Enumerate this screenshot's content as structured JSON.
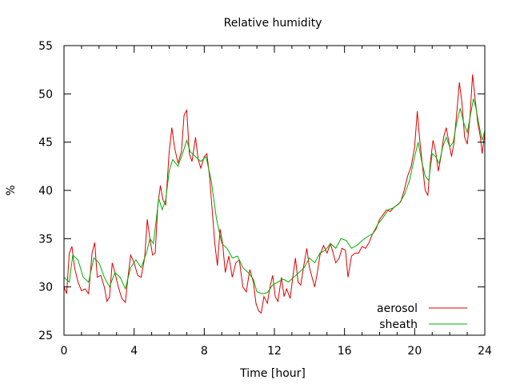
{
  "chart_data": {
    "type": "line",
    "title": "Relative humidity",
    "xlabel": "Time [hour]",
    "ylabel": "%",
    "xlim": [
      0,
      24
    ],
    "ylim": [
      25,
      55
    ],
    "xticks": [
      0,
      4,
      8,
      12,
      16,
      20,
      24
    ],
    "yticks": [
      25,
      30,
      35,
      40,
      45,
      50,
      55
    ],
    "legend_position": "bottom-right",
    "grid": false,
    "series": [
      {
        "name": "aerosol",
        "color": "#e00000",
        "points": [
          [
            0.0,
            30.0
          ],
          [
            0.15,
            29.3
          ],
          [
            0.3,
            33.5
          ],
          [
            0.45,
            34.2
          ],
          [
            0.6,
            32.0
          ],
          [
            0.8,
            30.5
          ],
          [
            1.0,
            29.6
          ],
          [
            1.2,
            29.8
          ],
          [
            1.4,
            29.3
          ],
          [
            1.6,
            33.5
          ],
          [
            1.75,
            34.6
          ],
          [
            1.9,
            31.0
          ],
          [
            2.1,
            31.2
          ],
          [
            2.3,
            30.0
          ],
          [
            2.45,
            28.5
          ],
          [
            2.6,
            29.0
          ],
          [
            2.75,
            32.5
          ],
          [
            2.9,
            31.5
          ],
          [
            3.1,
            30.0
          ],
          [
            3.3,
            28.8
          ],
          [
            3.5,
            28.4
          ],
          [
            3.65,
            31.0
          ],
          [
            3.8,
            33.3
          ],
          [
            4.0,
            32.5
          ],
          [
            4.2,
            31.2
          ],
          [
            4.4,
            31.0
          ],
          [
            4.6,
            33.0
          ],
          [
            4.75,
            37.0
          ],
          [
            4.9,
            35.0
          ],
          [
            5.05,
            33.3
          ],
          [
            5.2,
            33.5
          ],
          [
            5.35,
            38.5
          ],
          [
            5.5,
            40.5
          ],
          [
            5.65,
            39.0
          ],
          [
            5.8,
            38.5
          ],
          [
            6.0,
            44.0
          ],
          [
            6.15,
            46.5
          ],
          [
            6.3,
            44.5
          ],
          [
            6.5,
            42.8
          ],
          [
            6.7,
            44.0
          ],
          [
            6.85,
            47.8
          ],
          [
            7.0,
            48.3
          ],
          [
            7.15,
            43.8
          ],
          [
            7.3,
            43.0
          ],
          [
            7.5,
            45.5
          ],
          [
            7.65,
            43.2
          ],
          [
            7.8,
            42.3
          ],
          [
            8.0,
            43.5
          ],
          [
            8.15,
            43.8
          ],
          [
            8.3,
            41.5
          ],
          [
            8.45,
            38.0
          ],
          [
            8.6,
            34.5
          ],
          [
            8.75,
            32.2
          ],
          [
            8.9,
            36.0
          ],
          [
            9.05,
            34.5
          ],
          [
            9.2,
            31.5
          ],
          [
            9.4,
            33.2
          ],
          [
            9.6,
            31.0
          ],
          [
            9.8,
            32.5
          ],
          [
            10.0,
            32.8
          ],
          [
            10.2,
            30.0
          ],
          [
            10.4,
            29.5
          ],
          [
            10.6,
            31.8
          ],
          [
            10.8,
            30.5
          ],
          [
            10.95,
            28.3
          ],
          [
            11.1,
            27.5
          ],
          [
            11.25,
            27.3
          ],
          [
            11.4,
            29.0
          ],
          [
            11.6,
            28.3
          ],
          [
            11.75,
            30.0
          ],
          [
            11.9,
            31.2
          ],
          [
            12.05,
            29.0
          ],
          [
            12.2,
            28.5
          ],
          [
            12.4,
            31.0
          ],
          [
            12.55,
            29.0
          ],
          [
            12.7,
            29.8
          ],
          [
            12.9,
            28.8
          ],
          [
            13.05,
            31.0
          ],
          [
            13.2,
            33.0
          ],
          [
            13.35,
            30.5
          ],
          [
            13.5,
            30.2
          ],
          [
            13.7,
            32.5
          ],
          [
            13.85,
            34.0
          ],
          [
            14.0,
            32.0
          ],
          [
            14.15,
            31.0
          ],
          [
            14.3,
            30.0
          ],
          [
            14.45,
            31.5
          ],
          [
            14.6,
            33.3
          ],
          [
            14.8,
            34.3
          ],
          [
            15.0,
            33.5
          ],
          [
            15.2,
            34.5
          ],
          [
            15.35,
            33.5
          ],
          [
            15.5,
            32.5
          ],
          [
            15.7,
            33.0
          ],
          [
            15.85,
            34.0
          ],
          [
            16.05,
            33.8
          ],
          [
            16.2,
            31.0
          ],
          [
            16.4,
            33.2
          ],
          [
            16.6,
            33.5
          ],
          [
            16.8,
            33.5
          ],
          [
            17.0,
            34.2
          ],
          [
            17.2,
            34.0
          ],
          [
            17.4,
            34.6
          ],
          [
            17.6,
            35.5
          ],
          [
            17.8,
            36.0
          ],
          [
            18.0,
            37.0
          ],
          [
            18.2,
            37.5
          ],
          [
            18.4,
            38.0
          ],
          [
            18.6,
            37.8
          ],
          [
            18.8,
            38.2
          ],
          [
            19.0,
            38.5
          ],
          [
            19.2,
            38.8
          ],
          [
            19.4,
            40.0
          ],
          [
            19.6,
            41.5
          ],
          [
            19.8,
            42.5
          ],
          [
            20.0,
            44.5
          ],
          [
            20.15,
            48.2
          ],
          [
            20.3,
            45.0
          ],
          [
            20.45,
            42.5
          ],
          [
            20.6,
            40.0
          ],
          [
            20.75,
            39.5
          ],
          [
            20.9,
            43.0
          ],
          [
            21.05,
            45.2
          ],
          [
            21.2,
            44.0
          ],
          [
            21.35,
            42.0
          ],
          [
            21.5,
            43.5
          ],
          [
            21.65,
            45.5
          ],
          [
            21.8,
            46.5
          ],
          [
            21.95,
            45.0
          ],
          [
            22.1,
            43.5
          ],
          [
            22.25,
            45.0
          ],
          [
            22.4,
            48.0
          ],
          [
            22.55,
            51.2
          ],
          [
            22.7,
            49.0
          ],
          [
            22.85,
            45.5
          ],
          [
            23.0,
            44.8
          ],
          [
            23.15,
            47.5
          ],
          [
            23.3,
            52.0
          ],
          [
            23.45,
            49.5
          ],
          [
            23.6,
            47.0
          ],
          [
            23.75,
            45.5
          ],
          [
            23.85,
            43.8
          ],
          [
            24.0,
            46.0
          ]
        ]
      },
      {
        "name": "sheath",
        "color": "#00b000",
        "points": [
          [
            0.0,
            31.0
          ],
          [
            0.3,
            30.5
          ],
          [
            0.5,
            33.3
          ],
          [
            0.8,
            32.8
          ],
          [
            1.1,
            31.0
          ],
          [
            1.4,
            30.5
          ],
          [
            1.7,
            33.0
          ],
          [
            2.0,
            32.5
          ],
          [
            2.3,
            31.0
          ],
          [
            2.6,
            30.0
          ],
          [
            2.9,
            31.5
          ],
          [
            3.2,
            31.0
          ],
          [
            3.5,
            29.8
          ],
          [
            3.8,
            32.0
          ],
          [
            4.1,
            32.8
          ],
          [
            4.4,
            32.0
          ],
          [
            4.7,
            33.5
          ],
          [
            4.9,
            35.0
          ],
          [
            5.1,
            34.5
          ],
          [
            5.4,
            39.2
          ],
          [
            5.6,
            38.0
          ],
          [
            5.8,
            39.0
          ],
          [
            6.0,
            42.0
          ],
          [
            6.2,
            43.2
          ],
          [
            6.5,
            42.5
          ],
          [
            6.8,
            44.0
          ],
          [
            7.0,
            45.2
          ],
          [
            7.2,
            44.0
          ],
          [
            7.5,
            43.5
          ],
          [
            7.8,
            43.0
          ],
          [
            8.1,
            43.5
          ],
          [
            8.4,
            41.0
          ],
          [
            8.7,
            37.0
          ],
          [
            9.0,
            34.5
          ],
          [
            9.3,
            34.0
          ],
          [
            9.6,
            33.0
          ],
          [
            9.9,
            33.2
          ],
          [
            10.2,
            32.0
          ],
          [
            10.5,
            31.5
          ],
          [
            10.8,
            30.8
          ],
          [
            11.0,
            29.5
          ],
          [
            11.3,
            29.3
          ],
          [
            11.6,
            29.4
          ],
          [
            11.9,
            30.2
          ],
          [
            12.2,
            30.5
          ],
          [
            12.5,
            30.8
          ],
          [
            12.8,
            30.5
          ],
          [
            13.1,
            31.0
          ],
          [
            13.4,
            31.5
          ],
          [
            13.7,
            32.0
          ],
          [
            14.0,
            33.0
          ],
          [
            14.3,
            32.5
          ],
          [
            14.6,
            33.5
          ],
          [
            14.9,
            33.8
          ],
          [
            15.2,
            34.5
          ],
          [
            15.5,
            34.0
          ],
          [
            15.8,
            35.0
          ],
          [
            16.1,
            34.8
          ],
          [
            16.4,
            34.0
          ],
          [
            16.7,
            34.3
          ],
          [
            17.0,
            34.8
          ],
          [
            17.3,
            35.2
          ],
          [
            17.6,
            35.5
          ],
          [
            17.9,
            36.5
          ],
          [
            18.2,
            37.2
          ],
          [
            18.5,
            38.0
          ],
          [
            18.8,
            38.2
          ],
          [
            19.1,
            38.6
          ],
          [
            19.4,
            39.5
          ],
          [
            19.7,
            41.0
          ],
          [
            20.0,
            43.5
          ],
          [
            20.2,
            45.0
          ],
          [
            20.4,
            43.0
          ],
          [
            20.6,
            41.5
          ],
          [
            20.8,
            41.0
          ],
          [
            21.0,
            43.8
          ],
          [
            21.2,
            43.5
          ],
          [
            21.4,
            42.8
          ],
          [
            21.6,
            44.5
          ],
          [
            21.8,
            45.5
          ],
          [
            22.0,
            44.5
          ],
          [
            22.2,
            45.0
          ],
          [
            22.4,
            47.0
          ],
          [
            22.6,
            48.5
          ],
          [
            22.8,
            47.0
          ],
          [
            23.0,
            46.0
          ],
          [
            23.2,
            48.0
          ],
          [
            23.35,
            49.5
          ],
          [
            23.5,
            48.5
          ],
          [
            23.7,
            46.5
          ],
          [
            23.85,
            45.2
          ],
          [
            24.0,
            46.2
          ]
        ]
      }
    ]
  }
}
